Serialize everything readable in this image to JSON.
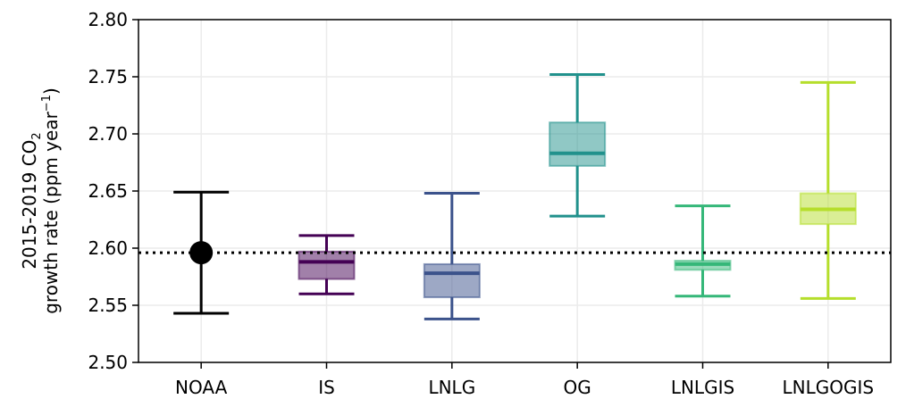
{
  "chart_data": {
    "type": "box",
    "title": "",
    "ylabel": {
      "line1_prefix": "2015-2019 CO",
      "line1_sub": "2",
      "line2_prefix": "growth rate (ppm year",
      "line2_sup": "−1",
      "line2_suffix": ")"
    },
    "ylim": [
      2.5,
      2.8
    ],
    "yticks": [
      2.5,
      2.55,
      2.6,
      2.65,
      2.7,
      2.75,
      2.8
    ],
    "ytick_labels": [
      "2.50",
      "2.55",
      "2.60",
      "2.65",
      "2.70",
      "2.75",
      "2.80"
    ],
    "grid": true,
    "reference_line": {
      "value": 2.596,
      "style": "dotted",
      "color": "#000000"
    },
    "categories": [
      "NOAA",
      "IS",
      "LNLG",
      "OG",
      "LNLGIS",
      "LNLGOGIS"
    ],
    "series": [
      {
        "category": "NOAA",
        "kind": "point-errorbar",
        "color": "#000000",
        "value": 2.596,
        "lower": 2.543,
        "upper": 2.649
      },
      {
        "category": "IS",
        "kind": "box",
        "color": "#440154",
        "whisker_low": 2.56,
        "q1": 2.573,
        "median": 2.588,
        "q3": 2.597,
        "whisker_high": 2.611
      },
      {
        "category": "LNLG",
        "kind": "box",
        "color": "#3b528b",
        "whisker_low": 2.538,
        "q1": 2.557,
        "median": 2.578,
        "q3": 2.586,
        "whisker_high": 2.648
      },
      {
        "category": "OG",
        "kind": "box",
        "color": "#21918c",
        "whisker_low": 2.628,
        "q1": 2.672,
        "median": 2.683,
        "q3": 2.71,
        "whisker_high": 2.752
      },
      {
        "category": "LNLGIS",
        "kind": "box",
        "color": "#35b779",
        "whisker_low": 2.558,
        "q1": 2.581,
        "median": 2.586,
        "q3": 2.589,
        "whisker_high": 2.637
      },
      {
        "category": "LNLGOGIS",
        "kind": "box",
        "color": "#b5de2b",
        "whisker_low": 2.556,
        "q1": 2.621,
        "median": 2.634,
        "q3": 2.648,
        "whisker_high": 2.745
      }
    ]
  }
}
